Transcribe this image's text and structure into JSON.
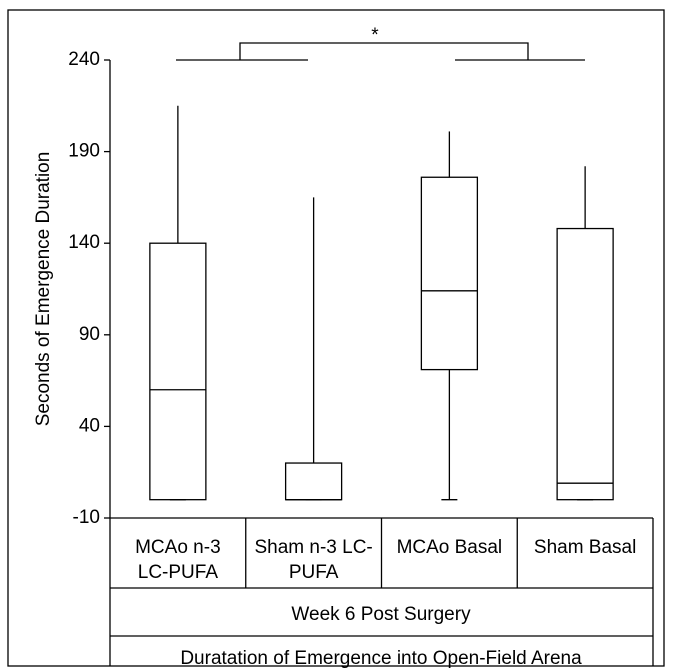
{
  "chart_data": {
    "type": "box",
    "ylabel": "Seconds of Emergence Duration",
    "categories": [
      [
        "MCAo n-3",
        "LC-PUFA"
      ],
      [
        "Sham n-3 LC-",
        "PUFA"
      ],
      [
        "MCAo Basal"
      ],
      [
        "Sham Basal"
      ]
    ],
    "group_label": "Week 6 Post Surgery",
    "xlabel": "Duratation of Emergence into Open-Field Arena",
    "annotation": "*",
    "min": [
      0,
      0,
      0,
      0
    ],
    "q1": [
      0,
      0,
      71,
      0
    ],
    "median": [
      60,
      0,
      114,
      9
    ],
    "q3": [
      140,
      20,
      176,
      148
    ],
    "max": [
      215,
      165,
      201,
      182
    ],
    "ylim": [
      -10,
      240
    ],
    "yticks": [
      -10,
      40,
      90,
      140,
      190,
      240
    ],
    "color": "#000000"
  }
}
